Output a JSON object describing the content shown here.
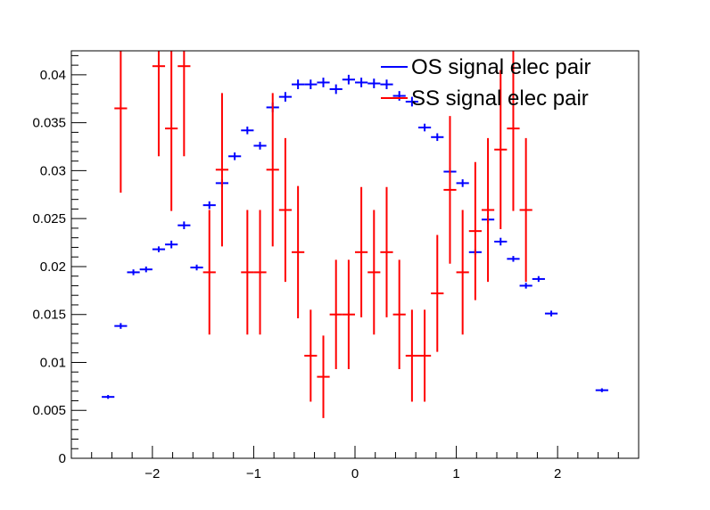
{
  "chart_data": {
    "type": "scatter",
    "title": "",
    "xlabel": "",
    "ylabel": "",
    "xlim": [
      -2.8,
      2.8
    ],
    "ylim": [
      0,
      0.0425
    ],
    "x_ticks": [
      -2,
      -1,
      0,
      1,
      2
    ],
    "x_tick_labels": [
      "−2",
      "−1",
      "0",
      "1",
      "2"
    ],
    "y_ticks": [
      0,
      0.005,
      0.01,
      0.015,
      0.02,
      0.025,
      0.03,
      0.035,
      0.04
    ],
    "y_tick_labels": [
      "0",
      "0.005",
      "0.01",
      "0.015",
      "0.02",
      "0.025",
      "0.03",
      "0.035",
      "0.04"
    ],
    "bin_half_width": 0.0625,
    "grid": false,
    "legend_position": "top-right",
    "series": [
      {
        "name": "OS signal elec pair",
        "color": "#0000ff",
        "points": [
          {
            "x": -2.4375,
            "y": 0.0064,
            "err": 0.0002
          },
          {
            "x": -2.3125,
            "y": 0.0138,
            "err": 0.0003
          },
          {
            "x": -2.1875,
            "y": 0.0194,
            "err": 0.0003
          },
          {
            "x": -2.0625,
            "y": 0.0197,
            "err": 0.0003
          },
          {
            "x": -1.9375,
            "y": 0.0218,
            "err": 0.0003
          },
          {
            "x": -1.8125,
            "y": 0.0223,
            "err": 0.0004
          },
          {
            "x": -1.6875,
            "y": 0.0243,
            "err": 0.0004
          },
          {
            "x": -1.5625,
            "y": 0.0199,
            "err": 0.0003
          },
          {
            "x": -1.4375,
            "y": 0.0264,
            "err": 0.0004
          },
          {
            "x": -1.3125,
            "y": 0.0287,
            "err": 0.0004
          },
          {
            "x": -1.1875,
            "y": 0.0315,
            "err": 0.0004
          },
          {
            "x": -1.0625,
            "y": 0.0342,
            "err": 0.0004
          },
          {
            "x": -0.9375,
            "y": 0.0326,
            "err": 0.0004
          },
          {
            "x": -0.8125,
            "y": 0.0366,
            "err": 0.0005
          },
          {
            "x": -0.6875,
            "y": 0.0377,
            "err": 0.0005
          },
          {
            "x": -0.5625,
            "y": 0.039,
            "err": 0.0005
          },
          {
            "x": -0.4375,
            "y": 0.039,
            "err": 0.0005
          },
          {
            "x": -0.3125,
            "y": 0.0392,
            "err": 0.0005
          },
          {
            "x": -0.1875,
            "y": 0.0385,
            "err": 0.0005
          },
          {
            "x": -0.0625,
            "y": 0.0395,
            "err": 0.0005
          },
          {
            "x": 0.0625,
            "y": 0.0392,
            "err": 0.0005
          },
          {
            "x": 0.1875,
            "y": 0.0391,
            "err": 0.0005
          },
          {
            "x": 0.3125,
            "y": 0.039,
            "err": 0.0005
          },
          {
            "x": 0.4375,
            "y": 0.0378,
            "err": 0.0005
          },
          {
            "x": 0.5625,
            "y": 0.0372,
            "err": 0.0005
          },
          {
            "x": 0.6875,
            "y": 0.0345,
            "err": 0.0004
          },
          {
            "x": 0.8125,
            "y": 0.0335,
            "err": 0.0004
          },
          {
            "x": 0.9375,
            "y": 0.0299,
            "err": 0.0004
          },
          {
            "x": 1.0625,
            "y": 0.0287,
            "err": 0.0004
          },
          {
            "x": 1.1875,
            "y": 0.0215,
            "err": 0.0003
          },
          {
            "x": 1.3125,
            "y": 0.0249,
            "err": 0.0004
          },
          {
            "x": 1.4375,
            "y": 0.0226,
            "err": 0.0004
          },
          {
            "x": 1.5625,
            "y": 0.0208,
            "err": 0.0003
          },
          {
            "x": 1.6875,
            "y": 0.018,
            "err": 0.0003
          },
          {
            "x": 1.8125,
            "y": 0.0187,
            "err": 0.0003
          },
          {
            "x": 1.9375,
            "y": 0.0151,
            "err": 0.0003
          },
          {
            "x": 2.4375,
            "y": 0.0071,
            "err": 0.0002
          }
        ]
      },
      {
        "name": "SS signal elec pair",
        "color": "#ff0000",
        "points": [
          {
            "x": -2.3125,
            "y": 0.0365,
            "err": 0.0088
          },
          {
            "x": -1.9375,
            "y": 0.0409,
            "err": 0.0094
          },
          {
            "x": -1.8125,
            "y": 0.0344,
            "err": 0.0086
          },
          {
            "x": -1.6875,
            "y": 0.0409,
            "err": 0.0094
          },
          {
            "x": -1.4375,
            "y": 0.0194,
            "err": 0.0065
          },
          {
            "x": -1.3125,
            "y": 0.0301,
            "err": 0.008
          },
          {
            "x": -1.0625,
            "y": 0.0194,
            "err": 0.0065
          },
          {
            "x": -0.9375,
            "y": 0.0194,
            "err": 0.0065
          },
          {
            "x": -0.8125,
            "y": 0.0301,
            "err": 0.008
          },
          {
            "x": -0.6875,
            "y": 0.0259,
            "err": 0.0075
          },
          {
            "x": -0.5625,
            "y": 0.0215,
            "err": 0.0069
          },
          {
            "x": -0.4375,
            "y": 0.0107,
            "err": 0.0048
          },
          {
            "x": -0.3125,
            "y": 0.0085,
            "err": 0.0043
          },
          {
            "x": -0.1875,
            "y": 0.015,
            "err": 0.0057
          },
          {
            "x": -0.0625,
            "y": 0.015,
            "err": 0.0057
          },
          {
            "x": 0.0625,
            "y": 0.0215,
            "err": 0.0068
          },
          {
            "x": 0.1875,
            "y": 0.0194,
            "err": 0.0065
          },
          {
            "x": 0.3125,
            "y": 0.0215,
            "err": 0.0068
          },
          {
            "x": 0.4375,
            "y": 0.015,
            "err": 0.0057
          },
          {
            "x": 0.5625,
            "y": 0.0107,
            "err": 0.0048
          },
          {
            "x": 0.6875,
            "y": 0.0107,
            "err": 0.0048
          },
          {
            "x": 0.8125,
            "y": 0.0172,
            "err": 0.0061
          },
          {
            "x": 0.9375,
            "y": 0.028,
            "err": 0.0077
          },
          {
            "x": 1.0625,
            "y": 0.0194,
            "err": 0.0065
          },
          {
            "x": 1.1875,
            "y": 0.0237,
            "err": 0.0072
          },
          {
            "x": 1.3125,
            "y": 0.0259,
            "err": 0.0075
          },
          {
            "x": 1.4375,
            "y": 0.0322,
            "err": 0.0083
          },
          {
            "x": 1.5625,
            "y": 0.0344,
            "err": 0.0086
          },
          {
            "x": 1.6875,
            "y": 0.0259,
            "err": 0.0075
          }
        ]
      }
    ]
  }
}
